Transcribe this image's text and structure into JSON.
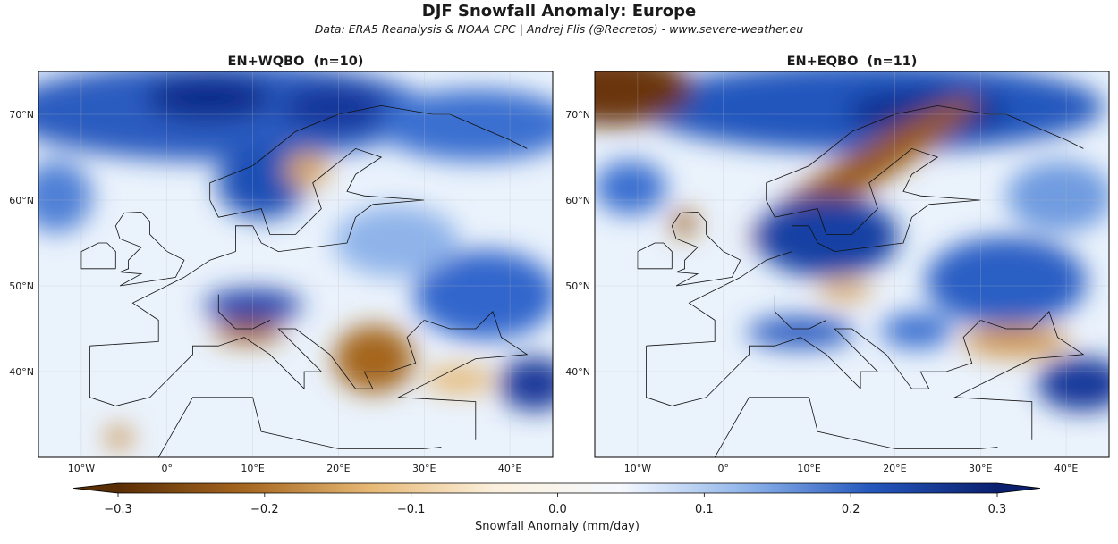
{
  "title": "DJF Snowfall Anomaly: Europe",
  "subtitle": "Data: ERA5 Reanalysis & NOAA CPC | Andrej Flis (@Recretos) - www.severe-weather.eu",
  "panels": [
    {
      "title": "EN+WQBO  (n=10)",
      "xlim": [
        -15,
        45
      ],
      "ylim": [
        30,
        75
      ],
      "xticks": [
        {
          "value": -10,
          "label": "10°W"
        },
        {
          "value": 0,
          "label": "0°"
        },
        {
          "value": 10,
          "label": "10°E"
        },
        {
          "value": 20,
          "label": "20°E"
        },
        {
          "value": 30,
          "label": "30°E"
        },
        {
          "value": 40,
          "label": "40°E"
        }
      ],
      "yticks": [
        {
          "value": 40,
          "label": "40°N"
        },
        {
          "value": 50,
          "label": "50°N"
        },
        {
          "value": 60,
          "label": "60°N"
        },
        {
          "value": 70,
          "label": "70°N"
        }
      ]
    },
    {
      "title": "EN+EQBO  (n=11)",
      "xlim": [
        -15,
        45
      ],
      "ylim": [
        30,
        75
      ],
      "xticks": [
        {
          "value": -10,
          "label": "10°W"
        },
        {
          "value": 0,
          "label": "0°"
        },
        {
          "value": 10,
          "label": "10°E"
        },
        {
          "value": 20,
          "label": "20°E"
        },
        {
          "value": 30,
          "label": "30°E"
        },
        {
          "value": 40,
          "label": "40°E"
        }
      ],
      "yticks": [
        {
          "value": 40,
          "label": "40°N"
        },
        {
          "value": 50,
          "label": "50°N"
        },
        {
          "value": 60,
          "label": "60°N"
        },
        {
          "value": 70,
          "label": "70°N"
        }
      ]
    }
  ],
  "colorbar": {
    "label": "Snowfall Anomaly (mm/day)",
    "lim": [
      -0.3,
      0.3
    ],
    "ticks": [
      {
        "value": -0.3,
        "label": "−0.3"
      },
      {
        "value": -0.2,
        "label": "−0.2"
      },
      {
        "value": -0.1,
        "label": "−0.1"
      },
      {
        "value": 0,
        "label": "0.0"
      },
      0.1,
      0.2,
      0.3
    ],
    "colors": [
      "#5a2e05",
      "#a5661f",
      "#e6b874",
      "#fbf0de",
      "#f5f9fe",
      "#8fb4ea",
      "#2457bd",
      "#0a1f6e"
    ]
  }
}
